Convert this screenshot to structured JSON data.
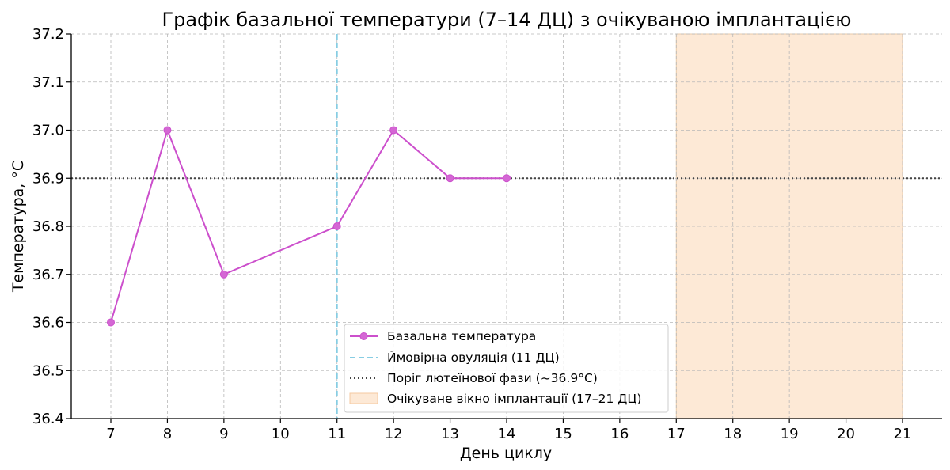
{
  "chart_data": {
    "type": "line",
    "title": "Графік базальної температури (7–14 ДЦ) з очікуваною імплантацією",
    "xlabel": "День циклу",
    "ylabel": "Температура, °C",
    "xlim": [
      6.3,
      21.7
    ],
    "ylim": [
      36.4,
      37.2
    ],
    "x_ticks": [
      7,
      8,
      9,
      10,
      11,
      12,
      13,
      14,
      15,
      16,
      17,
      18,
      19,
      20,
      21
    ],
    "y_ticks": [
      "36.4",
      "36.5",
      "36.6",
      "36.7",
      "36.8",
      "36.9",
      "37.0",
      "37.1",
      "37.2"
    ],
    "grid": true,
    "legend_position": "lower-center",
    "series": [
      {
        "name": "Базальна температура",
        "x": [
          7,
          8,
          9,
          11,
          12,
          13,
          14
        ],
        "values": [
          36.6,
          37.0,
          36.7,
          36.8,
          37.0,
          36.9,
          36.9
        ],
        "color": "#cc4fcc"
      }
    ],
    "ovulation_line": {
      "name": "Ймовірна овуляція (11 ДЦ)",
      "x": 11,
      "color": "#87cde3"
    },
    "threshold_line": {
      "name": "Поріг лютеїнової фази (~36.9°C)",
      "y": 36.9,
      "color": "#444444"
    },
    "implantation_window": {
      "name": "Очікуване вікно імплантації (17–21 ДЦ)",
      "x_start": 17,
      "x_end": 21,
      "color": "#fde9d6"
    }
  }
}
